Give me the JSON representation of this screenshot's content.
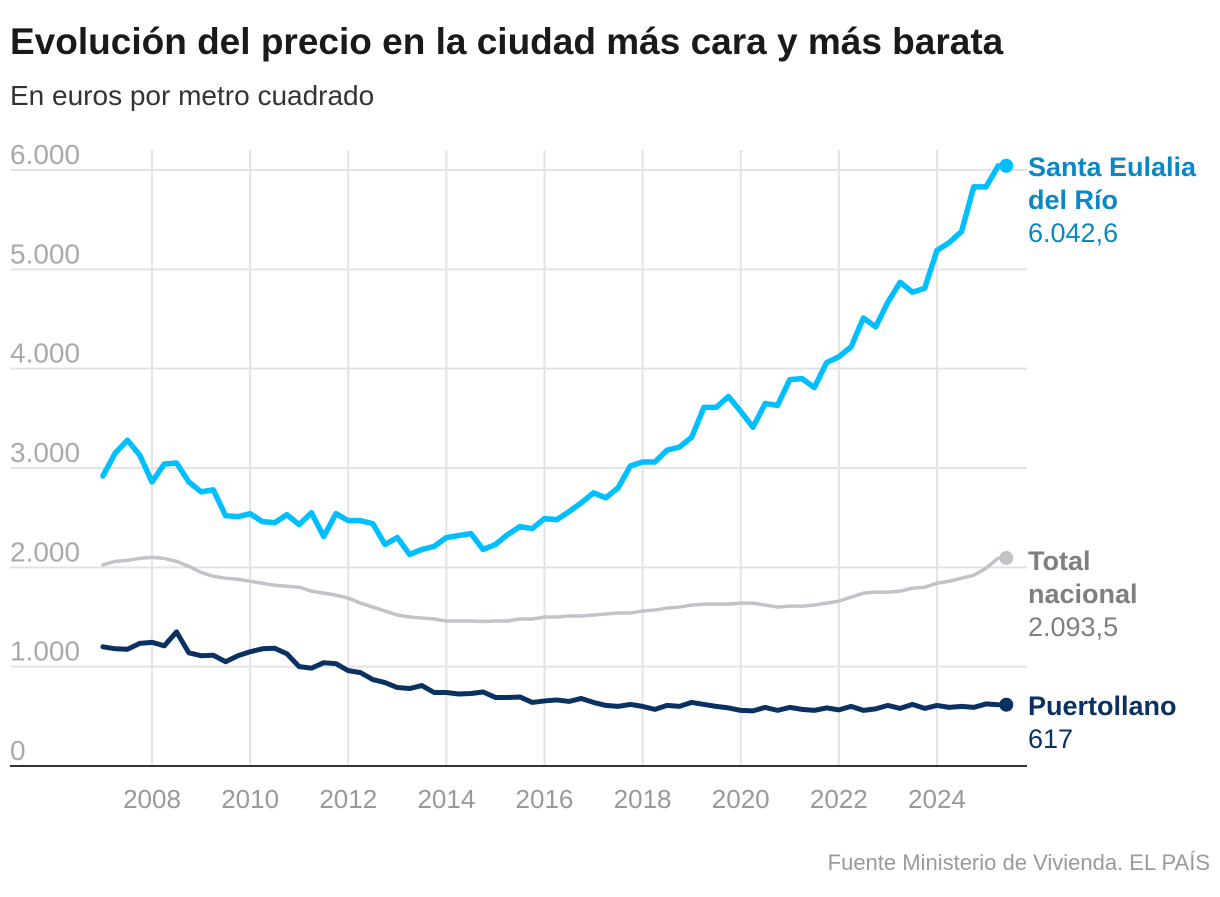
{
  "chart_data": {
    "type": "line",
    "title": "Evolución del precio en la ciudad más cara y más barata",
    "subtitle": "En euros por metro cuadrado",
    "source": "Fuente Ministerio de Vivienda. EL PAÍS",
    "x_start": 2007.0,
    "x_step": 0.25,
    "xlim": [
      2006.8,
      2025.6
    ],
    "ylim": [
      0,
      6000
    ],
    "x_ticks": [
      2008,
      2010,
      2012,
      2014,
      2016,
      2018,
      2020,
      2022,
      2024
    ],
    "x_tick_labels": [
      "2008",
      "2010",
      "2012",
      "2014",
      "2016",
      "2018",
      "2020",
      "2022",
      "2024"
    ],
    "y_ticks": [
      0,
      1000,
      2000,
      3000,
      4000,
      5000,
      6000
    ],
    "y_tick_labels": [
      "0",
      "1.000",
      "2.000",
      "3.000",
      "4.000",
      "5.000",
      "6.000"
    ],
    "grid": true,
    "series": [
      {
        "name": "Santa Eulalia del Río",
        "label_lines": [
          "Santa Eulalia",
          "del Río"
        ],
        "end_value_label": "6.042,6",
        "color": "#00bfff",
        "label_color": "#0a88c4",
        "values": [
          2920,
          3150,
          3280,
          3130,
          2860,
          3040,
          3050,
          2860,
          2760,
          2780,
          2520,
          2510,
          2540,
          2460,
          2450,
          2530,
          2430,
          2550,
          2310,
          2540,
          2470,
          2470,
          2440,
          2230,
          2300,
          2130,
          2180,
          2210,
          2300,
          2320,
          2340,
          2180,
          2230,
          2330,
          2410,
          2390,
          2490,
          2480,
          2560,
          2650,
          2750,
          2700,
          2800,
          3020,
          3060,
          3060,
          3180,
          3210,
          3310,
          3610,
          3610,
          3720,
          3570,
          3410,
          3650,
          3630,
          3890,
          3900,
          3810,
          4060,
          4120,
          4220,
          4510,
          4420,
          4670,
          4870,
          4770,
          4810,
          5190,
          5270,
          5380,
          5830,
          5830,
          6042.6
        ]
      },
      {
        "name": "Total nacional",
        "label_lines": [
          "Total",
          "nacional"
        ],
        "end_value_label": "2.093,5",
        "color": "#c0c3c7",
        "label_color": "#7f7f7f",
        "values": [
          2025,
          2060,
          2070,
          2090,
          2100,
          2090,
          2060,
          2010,
          1950,
          1910,
          1890,
          1880,
          1860,
          1840,
          1820,
          1810,
          1800,
          1760,
          1740,
          1720,
          1690,
          1640,
          1600,
          1560,
          1520,
          1500,
          1490,
          1480,
          1460,
          1460,
          1460,
          1455,
          1460,
          1460,
          1480,
          1480,
          1500,
          1500,
          1510,
          1510,
          1520,
          1530,
          1540,
          1540,
          1560,
          1570,
          1590,
          1600,
          1620,
          1630,
          1630,
          1630,
          1640,
          1640,
          1620,
          1600,
          1610,
          1610,
          1620,
          1640,
          1660,
          1700,
          1740,
          1750,
          1750,
          1760,
          1790,
          1800,
          1840,
          1860,
          1890,
          1920,
          1990,
          2093.5
        ]
      },
      {
        "name": "Puertollano",
        "label_lines": [
          "Puertollano"
        ],
        "end_value_label": "617",
        "color": "#0a3161",
        "label_color": "#0a3161",
        "values": [
          1200,
          1180,
          1175,
          1235,
          1245,
          1210,
          1350,
          1140,
          1110,
          1115,
          1050,
          1110,
          1150,
          1180,
          1185,
          1130,
          1000,
          985,
          1040,
          1030,
          960,
          940,
          870,
          840,
          790,
          780,
          810,
          740,
          740,
          725,
          730,
          745,
          690,
          690,
          695,
          640,
          655,
          665,
          650,
          680,
          640,
          610,
          600,
          620,
          600,
          570,
          610,
          600,
          640,
          620,
          600,
          585,
          560,
          555,
          590,
          560,
          590,
          570,
          560,
          585,
          565,
          600,
          560,
          575,
          610,
          580,
          620,
          580,
          610,
          590,
          600,
          590,
          625,
          617
        ]
      }
    ]
  }
}
